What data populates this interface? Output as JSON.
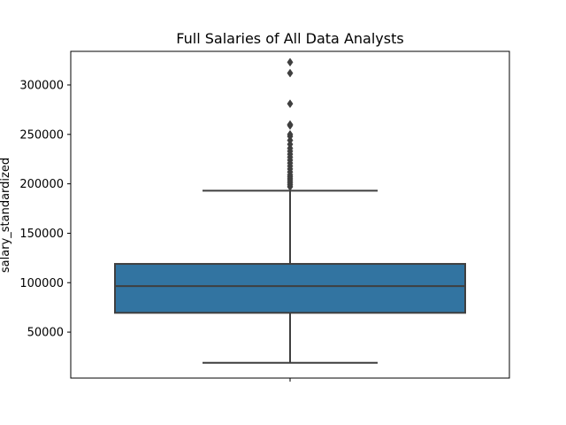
{
  "chart_data": {
    "type": "box",
    "title": "Full Salaries of All Data Analysts",
    "xlabel": "",
    "ylabel": "salary_standardized",
    "ylim": [
      3500,
      334000
    ],
    "yticks": [
      50000,
      100000,
      150000,
      200000,
      250000,
      300000
    ],
    "grid": false,
    "box_color": "#3274a1",
    "line_color": "#3f3f3f",
    "series": [
      {
        "whisker_low": 19000,
        "q1": 69500,
        "median": 96500,
        "q3": 119000,
        "whisker_high": 193000,
        "outliers": [
          197000,
          199000,
          201000,
          203000,
          205000,
          207000,
          209000,
          212000,
          215000,
          218000,
          221000,
          224000,
          227000,
          230000,
          233000,
          236000,
          240000,
          244000,
          248000,
          250000,
          259000,
          260000,
          281000,
          312000,
          323000
        ]
      }
    ]
  }
}
